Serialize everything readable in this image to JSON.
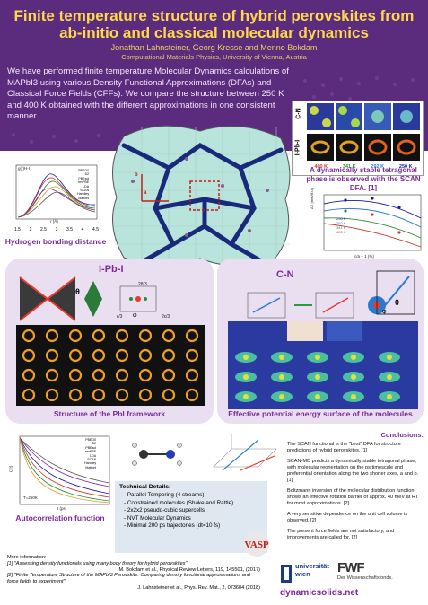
{
  "title_line1": "Finite temperature structure of hybrid perovskites from",
  "title_line2": "ab-initio and classical molecular dynamics",
  "authors": "Jonathan Lahnsteiner, Georg Kresse and Menno Bokdam",
  "affiliation": "Computational Materials Physics, University of Vienna, Austria",
  "abstract": "We have performed finite temperature Molecular Dynamics calculations of MAPbI3 using various Density Functional Approximations (DFAs) and Classical Force Fields (CFFs). We compare the structure between 250 K and 400 K obtained with the different approximations in one consistent manner.",
  "top_right": {
    "label_cn": "C-N",
    "label_ipbi": "I-Pb-I",
    "temps": [
      "400 K",
      "341 K",
      "292 K",
      "250 K"
    ],
    "temp_colors": [
      "#d0342c",
      "#2a8a3a",
      "#2a7ad0",
      "#1a1a9a"
    ]
  },
  "tetragonal_caption": "A dynamically stable tetragonal phase is observed with the SCAN DFA. [1]",
  "tetragonal_plot": {
    "xlabel": "c/a − 1 (%)",
    "ylabel": "ΔE (meV/f.u.)",
    "legend": [
      "250 K",
      "292 K",
      "341 K",
      "400 K"
    ]
  },
  "hbond_plot": {
    "ylabel": "g(r)H-I",
    "xlabel": "r (Å)",
    "xticks": [
      "1.5",
      "2",
      "2.5",
      "3",
      "3.5",
      "4",
      "4.5"
    ],
    "legend": [
      "PBEG0",
      "D2",
      "PBEsol",
      "revPBE",
      "LDA",
      "SCAN",
      "Handley",
      "Mattoni"
    ]
  },
  "hbond_caption": "Hydrogen bonding distance",
  "center_labels": {
    "a": "a",
    "b": "b"
  },
  "ipbi": {
    "title": "I-Pb-I",
    "theta": "θ",
    "phi": "φ",
    "labels": [
      "2θ/3",
      "ε/3",
      "2ε/3"
    ],
    "caption": "Structure of the PbI framework"
  },
  "cn": {
    "title": "C-N",
    "theta": "θ",
    "phi": "φ",
    "caption": "Effective potential energy surface of the molecules"
  },
  "autocorr": {
    "caption": "Autocorrelation function",
    "xlabel": "t (ps)",
    "ylabel": "C(t)",
    "temp": "T=250K",
    "legend": [
      "PBEG0",
      "D2",
      "PBEsol",
      "revPBE",
      "LDA",
      "SCAN",
      "Handley",
      "Mattoni"
    ]
  },
  "technical": {
    "title": "Technical Details:",
    "items": [
      "Parallel Tempering (4 streams)",
      "Constrained molecules (Shake and Rattle)",
      "2x2x2 pseudo-cubic supercells",
      "NVT Molecular Dynamics",
      "Minimal 200 ps trajectories (dt=10 fs)"
    ]
  },
  "conclusions": {
    "title": "Conclusions:",
    "items": [
      "The SCAN functional is the \"best\" DFA for structure predictions of hybrid perovskites. [1]",
      "SCAN-MD predicts a dynamically stable tetragonal phase, with molecular reorientation on the ps timescale and preferential orientation along the two shorter axes, a and b. [1]",
      "Boltzmann inversion of the molecular distribution function shows an effective rotation barrier of approx. 40 meV at RT for most approximations. [2]",
      "A very sensitive dependence on the unit cell volume is observed. [2]",
      "The present force fields are not satisfactory, and improvements are called for. [2]"
    ]
  },
  "references": {
    "heading": "More information:",
    "ref1": "[1] \"Assessing density functionals using many body theory for hybrid perovskites\"",
    "ref1b": "M. Bokdam et al., Physical Review Letters, 119, 145501, (2017)",
    "ref2": "[2] \"Finite Temperature Structure of the MAPbI3 Perovskite: Comparing density functional approximations and force fields to experiment\"",
    "ref2b": "J. Lahnsteiner et al., Phys. Rev. Mat., 2, 073604 (2018)"
  },
  "logos": {
    "uni1": "universität",
    "uni2": "wien",
    "fwf": "FWF",
    "fwf_sub": "Der Wissenschaftsfonds.",
    "vasp": "VASP"
  },
  "website": "dynamicsolids.net",
  "colors": {
    "purple": "#5b2c7e",
    "yellow": "#ffd84a",
    "accent": "#7a2a9a"
  }
}
